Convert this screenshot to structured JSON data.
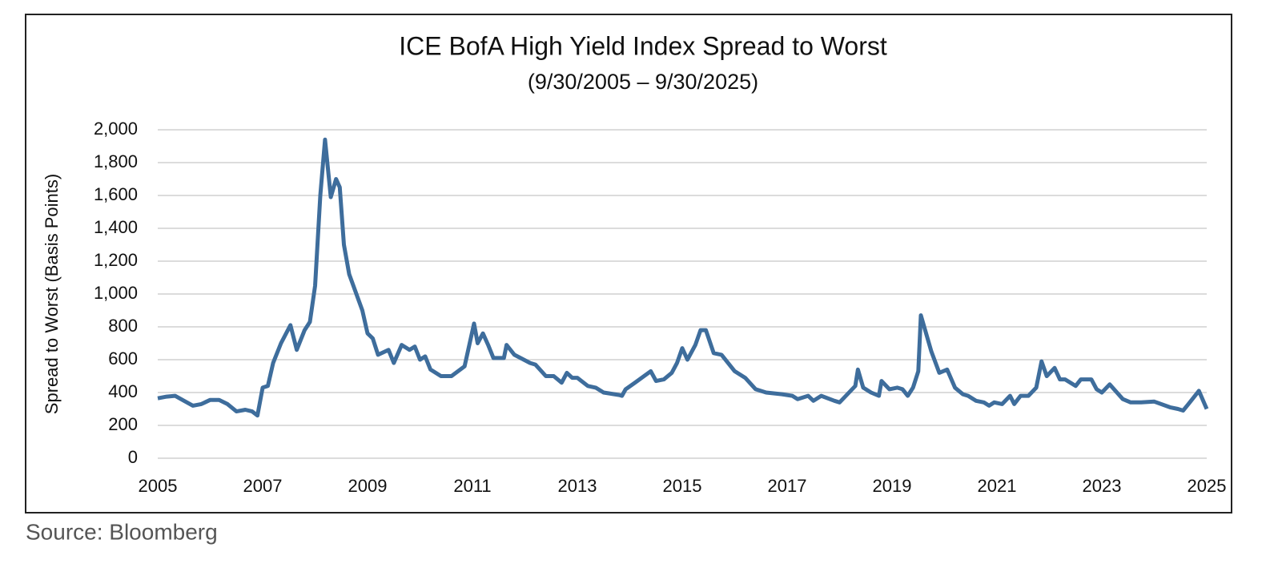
{
  "chart_data": {
    "type": "line",
    "title": "ICE BofA High Yield Index Spread to Worst",
    "subtitle": "(9/30/2005 – 9/30/2025)",
    "y_label": "Spread to Worst (Basis Points)",
    "source": "Source: Bloomberg",
    "xlim": [
      2005,
      2025
    ],
    "xticks": [
      2005,
      2007,
      2009,
      2011,
      2013,
      2015,
      2017,
      2019,
      2021,
      2023,
      2025
    ],
    "ylim": [
      0,
      2000
    ],
    "yticks": [
      0,
      200,
      400,
      600,
      800,
      {
        "value": 1000,
        "label": "1,000"
      },
      {
        "value": 1200,
        "label": "1,200"
      },
      {
        "value": 1400,
        "label": "1,400"
      },
      {
        "value": 1600,
        "label": "1,600"
      },
      {
        "value": 1800,
        "label": "1,800"
      },
      {
        "value": 2000,
        "label": "2,000"
      }
    ],
    "grid": true,
    "x": [
      2005.0,
      2005.17,
      2005.33,
      2005.5,
      2005.67,
      2005.83,
      2006.0,
      2006.17,
      2006.33,
      2006.5,
      2006.67,
      2006.8,
      2006.9,
      2007.0,
      2007.1,
      2007.2,
      2007.35,
      2007.53,
      2007.65,
      2007.8,
      2007.9,
      2008.0,
      2008.1,
      2008.19,
      2008.3,
      2008.4,
      2008.47,
      2008.55,
      2008.65,
      2008.9,
      2009.0,
      2009.1,
      2009.2,
      2009.4,
      2009.5,
      2009.65,
      2009.8,
      2009.9,
      2010.0,
      2010.1,
      2010.2,
      2010.4,
      2010.6,
      2010.85,
      2011.03,
      2011.1,
      2011.2,
      2011.3,
      2011.4,
      2011.6,
      2011.65,
      2011.8,
      2012.1,
      2012.2,
      2012.4,
      2012.55,
      2012.7,
      2012.8,
      2012.9,
      2013.0,
      2013.2,
      2013.35,
      2013.5,
      2013.8,
      2013.85,
      2013.92,
      2014.1,
      2014.4,
      2014.5,
      2014.65,
      2014.8,
      2014.9,
      2015.0,
      2015.1,
      2015.25,
      2015.35,
      2015.45,
      2015.6,
      2015.75,
      2016.0,
      2016.2,
      2016.4,
      2016.6,
      2016.9,
      2017.1,
      2017.2,
      2017.4,
      2017.5,
      2017.65,
      2017.9,
      2018.0,
      2018.3,
      2018.35,
      2018.45,
      2018.6,
      2018.75,
      2018.8,
      2018.95,
      2019.1,
      2019.2,
      2019.3,
      2019.4,
      2019.5,
      2019.55,
      2019.75,
      2019.9,
      2020.05,
      2020.2,
      2020.35,
      2020.45,
      2020.6,
      2020.75,
      2020.85,
      2020.95,
      2021.1,
      2021.25,
      2021.33,
      2021.45,
      2021.6,
      2021.75,
      2021.85,
      2021.95,
      2022.1,
      2022.2,
      2022.3,
      2022.5,
      2022.6,
      2022.8,
      2022.9,
      2023.0,
      2023.15,
      2023.4,
      2023.55,
      2023.75,
      2024.0,
      2024.3,
      2024.45,
      2024.55,
      2024.65,
      2024.85,
      2025.0
    ],
    "series": [
      {
        "name": "ICE BofA High Yield Index Spread to Worst",
        "color": "#3e6d9c",
        "values": [
          365,
          375,
          380,
          350,
          320,
          330,
          355,
          355,
          330,
          285,
          295,
          285,
          260,
          430,
          440,
          580,
          700,
          810,
          660,
          780,
          830,
          1050,
          1600,
          1940,
          1590,
          1700,
          1650,
          1300,
          1120,
          900,
          760,
          730,
          630,
          660,
          580,
          690,
          660,
          680,
          600,
          620,
          540,
          500,
          500,
          560,
          820,
          700,
          760,
          690,
          610,
          610,
          690,
          630,
          580,
          570,
          500,
          500,
          460,
          520,
          490,
          490,
          440,
          430,
          400,
          385,
          380,
          420,
          460,
          530,
          470,
          480,
          520,
          580,
          670,
          600,
          690,
          780,
          780,
          640,
          630,
          530,
          490,
          420,
          400,
          390,
          380,
          360,
          380,
          350,
          380,
          350,
          340,
          440,
          540,
          430,
          400,
          380,
          470,
          420,
          430,
          420,
          380,
          430,
          530,
          870,
          650,
          520,
          540,
          430,
          390,
          380,
          350,
          340,
          320,
          340,
          330,
          380,
          330,
          380,
          380,
          430,
          590,
          500,
          550,
          480,
          480,
          440,
          480,
          480,
          420,
          400,
          450,
          360,
          340,
          340,
          345,
          310,
          300,
          290,
          330,
          410,
          300
        ]
      }
    ]
  }
}
